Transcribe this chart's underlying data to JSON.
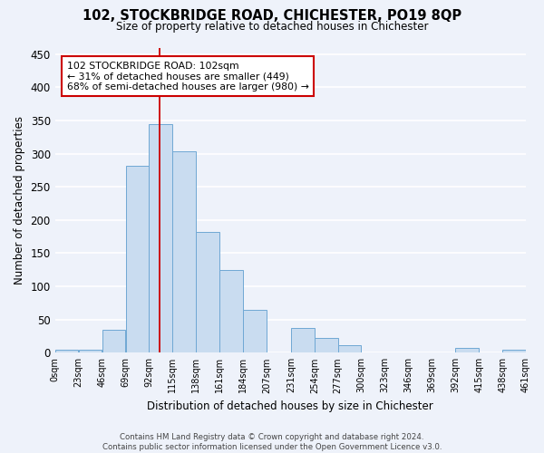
{
  "title": "102, STOCKBRIDGE ROAD, CHICHESTER, PO19 8QP",
  "subtitle": "Size of property relative to detached houses in Chichester",
  "xlabel": "Distribution of detached houses by size in Chichester",
  "ylabel": "Number of detached properties",
  "bar_color": "#c9dcf0",
  "bar_edge_color": "#6fa8d4",
  "background_color": "#eef2fa",
  "grid_color": "#ffffff",
  "bin_edges": [
    0,
    23,
    46,
    69,
    92,
    115,
    138,
    161,
    184,
    207,
    231,
    254,
    277,
    300,
    323,
    346,
    369,
    392,
    415,
    438,
    461
  ],
  "bin_labels": [
    "0sqm",
    "23sqm",
    "46sqm",
    "69sqm",
    "92sqm",
    "115sqm",
    "138sqm",
    "161sqm",
    "184sqm",
    "207sqm",
    "231sqm",
    "254sqm",
    "277sqm",
    "300sqm",
    "323sqm",
    "346sqm",
    "369sqm",
    "392sqm",
    "415sqm",
    "438sqm",
    "461sqm"
  ],
  "bar_heights": [
    5,
    5,
    35,
    282,
    345,
    303,
    182,
    125,
    65,
    0,
    37,
    22,
    12,
    0,
    0,
    0,
    0,
    7,
    0,
    5
  ],
  "ylim": [
    0,
    460
  ],
  "yticks": [
    0,
    50,
    100,
    150,
    200,
    250,
    300,
    350,
    400,
    450
  ],
  "property_size": 102,
  "vline_color": "#cc0000",
  "annotation_title": "102 STOCKBRIDGE ROAD: 102sqm",
  "annotation_line1": "← 31% of detached houses are smaller (449)",
  "annotation_line2": "68% of semi-detached houses are larger (980) →",
  "annotation_box_color": "#ffffff",
  "annotation_box_edge": "#cc0000",
  "footnote1": "Contains HM Land Registry data © Crown copyright and database right 2024.",
  "footnote2": "Contains public sector information licensed under the Open Government Licence v3.0."
}
